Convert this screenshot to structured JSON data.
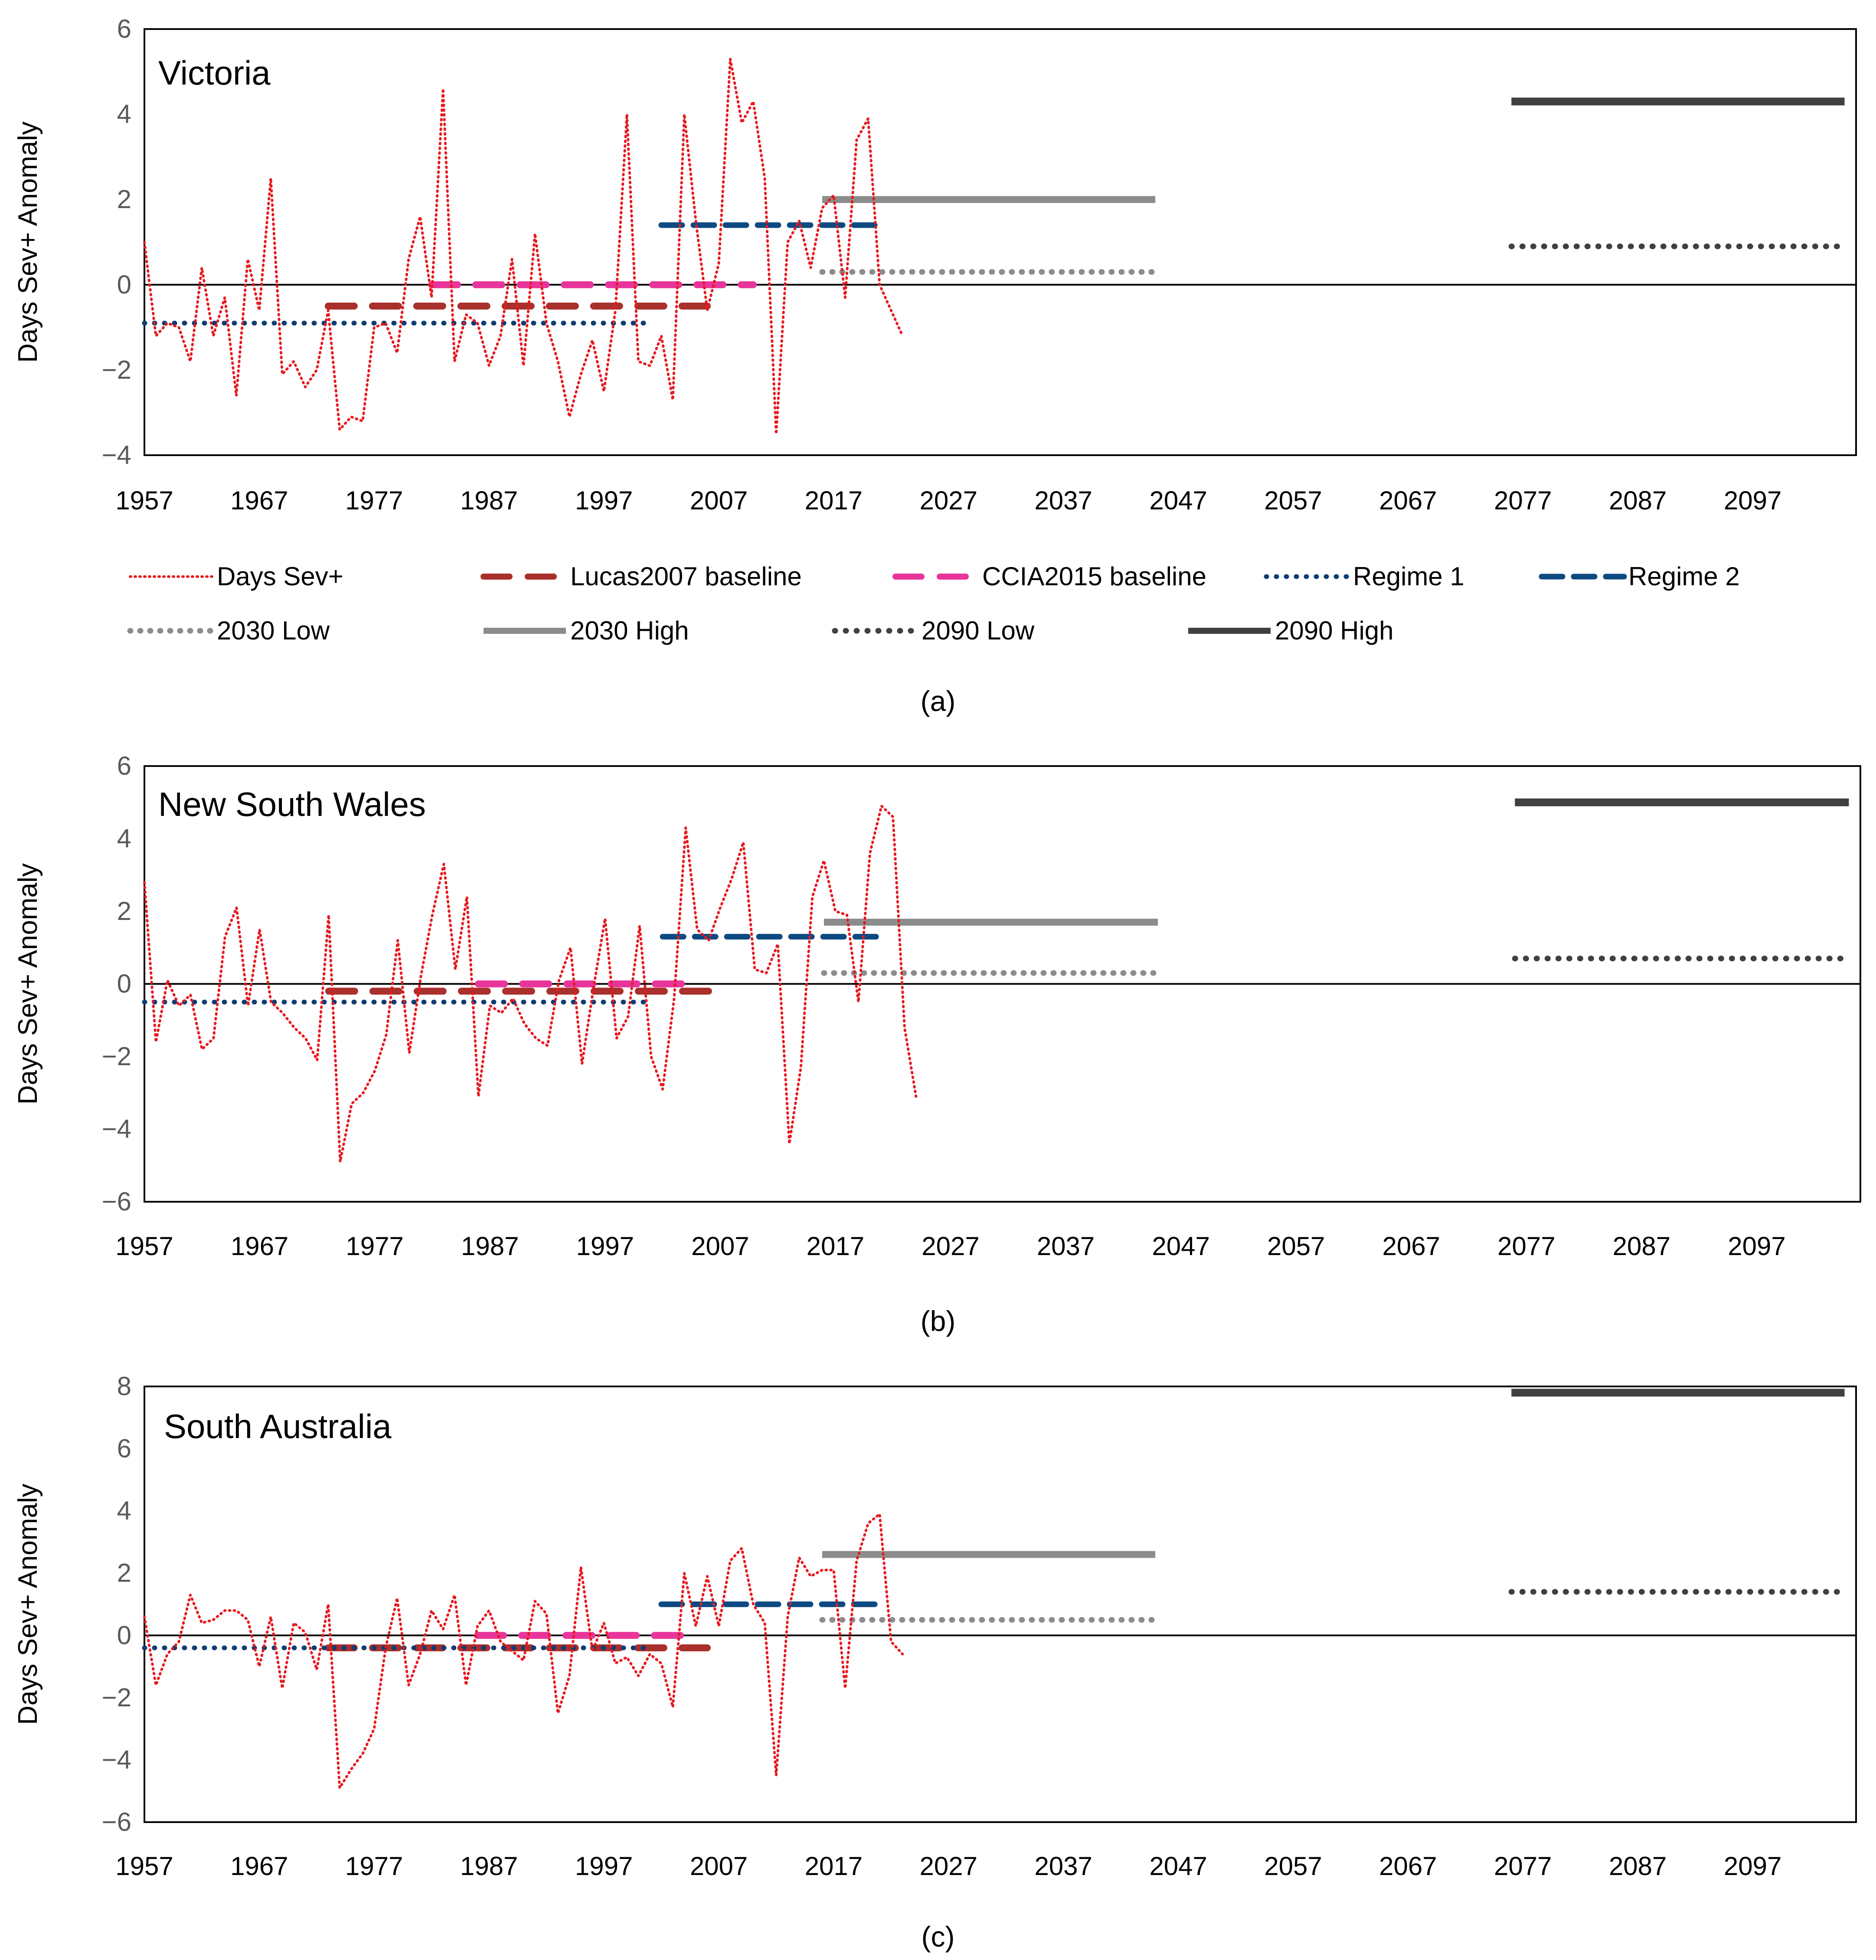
{
  "chart_data": [
    {
      "type": "line",
      "panel_label": "(a)",
      "title": "Victoria",
      "ylabel": "Days Sev+ Anomaly",
      "xlabel": "",
      "xlim": [
        1957,
        2106
      ],
      "ylim": [
        -4,
        6
      ],
      "yticks": [
        -4,
        -2,
        0,
        2,
        4,
        6
      ],
      "xticks": [
        1957,
        1967,
        1977,
        1987,
        1997,
        2007,
        2017,
        2027,
        2037,
        2047,
        2057,
        2067,
        2077,
        2087,
        2097
      ],
      "series": [
        {
          "name": "Days Sev+",
          "x_start": 1957,
          "values": [
            1.0,
            -1.2,
            -0.9,
            -1.0,
            -1.8,
            0.4,
            -1.2,
            -0.3,
            -2.6,
            0.6,
            -0.6,
            2.5,
            -2.1,
            -1.8,
            -2.4,
            -2.0,
            -0.6,
            -3.4,
            -3.1,
            -3.2,
            -1.0,
            -0.9,
            -1.6,
            0.6,
            1.6,
            -0.3,
            4.6,
            -1.8,
            -0.7,
            -0.9,
            -1.9,
            -1.2,
            0.6,
            -1.9,
            1.2,
            -0.9,
            -1.8,
            -3.1,
            -2.1,
            -1.3,
            -2.5,
            -0.6,
            4.0,
            -1.8,
            -1.9,
            -1.2,
            -2.7,
            4.0,
            1.5,
            -0.6,
            0.5,
            5.3,
            3.8,
            4.3,
            2.5,
            -3.5,
            1.0,
            1.5,
            0.4,
            1.8,
            2.1,
            -0.3,
            3.4,
            3.9,
            0.0,
            -0.6,
            -1.2
          ]
        },
        {
          "name": "Lucas2007 baseline",
          "x_start": 1973,
          "x_end": 2006,
          "values": [
            -0.5,
            -0.5
          ]
        },
        {
          "name": "CCIA2015 baseline",
          "x_start": 1982,
          "x_end": 2010,
          "values": [
            0.0,
            0.0
          ]
        },
        {
          "name": "Regime 1",
          "x_start": 1957,
          "x_end": 2001,
          "values": [
            -0.9,
            -0.9
          ]
        },
        {
          "name": "Regime 2",
          "x_start": 2002,
          "x_end": 2021,
          "values": [
            1.4,
            1.4
          ]
        },
        {
          "name": "2030 Low",
          "x_start": 2016,
          "x_end": 2045,
          "values": [
            0.3,
            0.3
          ]
        },
        {
          "name": "2030 High",
          "x_start": 2016,
          "x_end": 2045,
          "values": [
            2.0,
            2.0
          ]
        },
        {
          "name": "2090 Low",
          "x_start": 2076,
          "x_end": 2105,
          "values": [
            0.9,
            0.9
          ]
        },
        {
          "name": "2090 High",
          "x_start": 2076,
          "x_end": 2105,
          "values": [
            4.3,
            4.3
          ]
        }
      ]
    },
    {
      "type": "line",
      "panel_label": "(b)",
      "title": "New South Wales",
      "ylabel": "Days Sev+ Anomaly",
      "xlabel": "",
      "xlim": [
        1957,
        2106
      ],
      "ylim": [
        -6,
        6
      ],
      "yticks": [
        -6,
        -4,
        -2,
        0,
        2,
        4,
        6
      ],
      "xticks": [
        1957,
        1967,
        1977,
        1987,
        1997,
        2007,
        2017,
        2027,
        2037,
        2047,
        2057,
        2067,
        2077,
        2087,
        2097
      ],
      "series": [
        {
          "name": "Days Sev+",
          "x_start": 1957,
          "values": [
            2.8,
            -1.6,
            0.1,
            -0.6,
            -0.3,
            -1.8,
            -1.5,
            1.3,
            2.1,
            -0.6,
            1.5,
            -0.5,
            -0.8,
            -1.2,
            -1.5,
            -2.1,
            1.9,
            -4.9,
            -3.3,
            -3.0,
            -2.4,
            -1.4,
            1.2,
            -1.9,
            0.2,
            1.9,
            3.3,
            0.4,
            2.4,
            -3.1,
            -0.6,
            -0.8,
            -0.4,
            -1.1,
            -1.5,
            -1.7,
            0.1,
            1.0,
            -2.2,
            -0.1,
            1.8,
            -1.5,
            -0.9,
            1.6,
            -2.0,
            -2.9,
            -0.4,
            4.3,
            1.5,
            1.2,
            2.1,
            2.9,
            3.9,
            0.4,
            0.3,
            1.1,
            -4.4,
            -2.3,
            2.4,
            3.4,
            2.0,
            1.9,
            -0.5,
            3.6,
            4.9,
            4.6,
            -1.2,
            -3.1
          ]
        },
        {
          "name": "Lucas2007 baseline",
          "x_start": 1973,
          "x_end": 2006,
          "values": [
            -0.2,
            -0.2
          ]
        },
        {
          "name": "CCIA2015 baseline",
          "x_start": 1986,
          "x_end": 2005,
          "values": [
            0.0,
            0.0
          ]
        },
        {
          "name": "Regime 1",
          "x_start": 1957,
          "x_end": 2001,
          "values": [
            -0.5,
            -0.5
          ]
        },
        {
          "name": "Regime 2",
          "x_start": 2002,
          "x_end": 2021,
          "values": [
            1.3,
            1.3
          ]
        },
        {
          "name": "2030 Low",
          "x_start": 2016,
          "x_end": 2045,
          "values": [
            0.3,
            0.3
          ]
        },
        {
          "name": "2030 High",
          "x_start": 2016,
          "x_end": 2045,
          "values": [
            1.7,
            1.7
          ]
        },
        {
          "name": "2090 Low",
          "x_start": 2076,
          "x_end": 2105,
          "values": [
            0.7,
            0.7
          ]
        },
        {
          "name": "2090 High",
          "x_start": 2076,
          "x_end": 2105,
          "values": [
            5.0,
            5.0
          ]
        }
      ]
    },
    {
      "type": "line",
      "panel_label": "(c)",
      "title": "South Australia",
      "ylabel": "Days Sev+ Anomaly",
      "xlabel": "",
      "xlim": [
        1957,
        2106
      ],
      "ylim": [
        -6,
        8
      ],
      "yticks": [
        -6,
        -4,
        -2,
        0,
        2,
        4,
        6,
        8
      ],
      "xticks": [
        1957,
        1967,
        1977,
        1987,
        1997,
        2007,
        2017,
        2027,
        2037,
        2047,
        2057,
        2067,
        2077,
        2087,
        2097
      ],
      "series": [
        {
          "name": "Days Sev+",
          "x_start": 1957,
          "values": [
            0.6,
            -1.6,
            -0.6,
            -0.2,
            1.3,
            0.4,
            0.5,
            0.8,
            0.8,
            0.5,
            -1.0,
            0.6,
            -1.7,
            0.4,
            0.1,
            -1.1,
            1.0,
            -4.9,
            -4.3,
            -3.8,
            -3.0,
            -0.4,
            1.2,
            -1.6,
            -0.6,
            0.8,
            0.2,
            1.3,
            -1.6,
            0.3,
            0.8,
            -0.2,
            -0.5,
            -0.8,
            1.1,
            0.7,
            -2.5,
            -1.3,
            2.2,
            -0.5,
            0.4,
            -0.9,
            -0.7,
            -1.3,
            -0.6,
            -0.9,
            -2.3,
            2.0,
            0.3,
            1.9,
            0.3,
            2.4,
            2.8,
            1.0,
            0.4,
            -4.5,
            0.6,
            2.5,
            1.9,
            2.1,
            2.1,
            -1.7,
            2.4,
            3.6,
            3.9,
            -0.2,
            -0.6
          ]
        },
        {
          "name": "Lucas2007 baseline",
          "x_start": 1973,
          "x_end": 2006,
          "values": [
            -0.4,
            -0.4
          ]
        },
        {
          "name": "CCIA2015 baseline",
          "x_start": 1986,
          "x_end": 2005,
          "values": [
            0.0,
            0.0
          ]
        },
        {
          "name": "Regime 1",
          "x_start": 1957,
          "x_end": 2001,
          "values": [
            -0.4,
            -0.4
          ]
        },
        {
          "name": "Regime 2",
          "x_start": 2002,
          "x_end": 2021,
          "values": [
            1.0,
            1.0
          ]
        },
        {
          "name": "2030 Low",
          "x_start": 2016,
          "x_end": 2045,
          "values": [
            0.5,
            0.5
          ]
        },
        {
          "name": "2030 High",
          "x_start": 2016,
          "x_end": 2045,
          "values": [
            2.6,
            2.6
          ]
        },
        {
          "name": "2090 Low",
          "x_start": 2076,
          "x_end": 2105,
          "values": [
            1.4,
            1.4
          ]
        },
        {
          "name": "2090 High",
          "x_start": 2076,
          "x_end": 2105,
          "values": [
            7.8,
            7.8
          ]
        }
      ]
    }
  ],
  "legend": [
    {
      "label": "Days Sev+",
      "style": "dotted-thin",
      "color": "#e8191e"
    },
    {
      "label": "Lucas2007 baseline",
      "style": "long-dash",
      "color": "#a9302c"
    },
    {
      "label": "CCIA2015 baseline",
      "style": "long-dash",
      "color": "#e8359b"
    },
    {
      "label": "Regime 1",
      "style": "dotted",
      "color": "#0f3d73"
    },
    {
      "label": "Regime 2",
      "style": "solid",
      "color": "#0d4a82"
    },
    {
      "label": "2030 Low",
      "style": "dotted",
      "color": "#8c8c8c"
    },
    {
      "label": "2030 High",
      "style": "solid",
      "color": "#8c8c8c"
    },
    {
      "label": "2090 Low",
      "style": "dotted",
      "color": "#404040"
    },
    {
      "label": "2090 High",
      "style": "solid",
      "color": "#404040"
    }
  ],
  "colors": {
    "axis": "#000000",
    "zero_line": "#000000"
  }
}
